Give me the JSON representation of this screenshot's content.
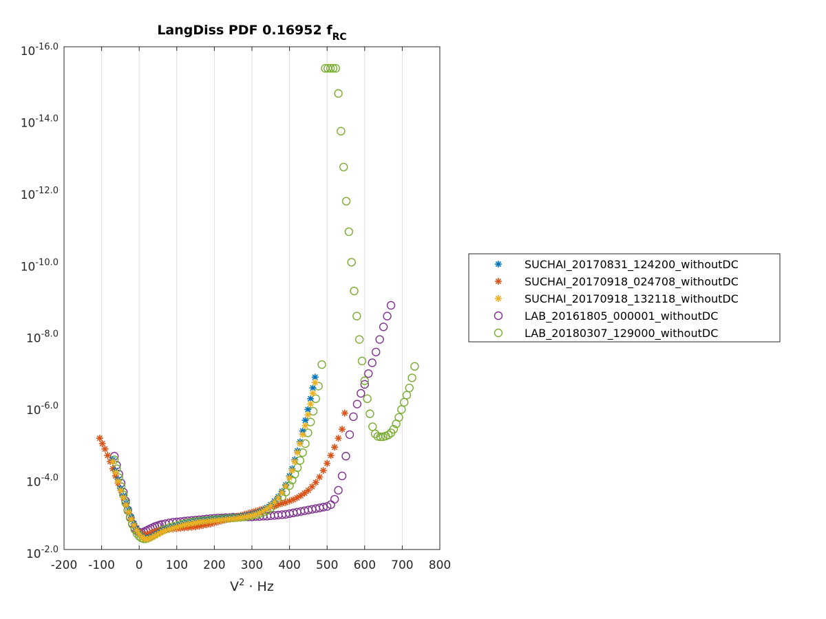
{
  "chart_data": {
    "type": "scatter",
    "title": "LangDiss PDF 0.16952 f",
    "title_subscript": "RC",
    "xlabel": "V",
    "xlabel_superscript": "2",
    "xlabel_suffix": " · Hz",
    "ylabel": "",
    "y_scale": "log",
    "xlim": [
      -200,
      800
    ],
    "ylim_exponent": [
      -16,
      -2
    ],
    "x_ticks": [
      -200,
      -100,
      0,
      100,
      200,
      300,
      400,
      500,
      600,
      700,
      800
    ],
    "y_tick_exponents": [
      -2,
      -4,
      -6,
      -8,
      -10,
      -12,
      -14,
      -16
    ],
    "y_tick_labels": [
      "10^-2.0",
      "10^-4.0",
      "10^-6.0",
      "10^-8.0",
      "10^-10.0",
      "10^-12.0",
      "10^-14.0",
      "10^-16.0"
    ],
    "grid": true,
    "legend_position": "right-outside",
    "series": [
      {
        "name": "SUCHAI_20170831_124200_withoutDC",
        "marker": "asterisk",
        "color": "#0072BD",
        "x": [
          -70,
          -63,
          -56,
          -49,
          -42,
          -35,
          -28,
          -21,
          -14,
          -7,
          0,
          7,
          14,
          21,
          28,
          35,
          42,
          49,
          56,
          63,
          70,
          80,
          90,
          100,
          110,
          120,
          130,
          140,
          150,
          160,
          170,
          180,
          190,
          200,
          210,
          220,
          230,
          240,
          250,
          260,
          270,
          280,
          290,
          300,
          310,
          320,
          330,
          340,
          350,
          360,
          370,
          380,
          390,
          400,
          407,
          414,
          421,
          428,
          435,
          442,
          449,
          456,
          462,
          468
        ],
        "y_log10": [
          -4.5,
          -4.2,
          -3.95,
          -3.7,
          -3.5,
          -3.3,
          -3.1,
          -2.9,
          -2.72,
          -2.58,
          -2.46,
          -2.38,
          -2.33,
          -2.32,
          -2.34,
          -2.37,
          -2.41,
          -2.45,
          -2.49,
          -2.53,
          -2.56,
          -2.6,
          -2.63,
          -2.66,
          -2.69,
          -2.72,
          -2.74,
          -2.76,
          -2.78,
          -2.8,
          -2.81,
          -2.82,
          -2.83,
          -2.84,
          -2.85,
          -2.86,
          -2.87,
          -2.88,
          -2.89,
          -2.9,
          -2.92,
          -2.94,
          -2.96,
          -2.98,
          -3.01,
          -3.05,
          -3.1,
          -3.17,
          -3.25,
          -3.35,
          -3.47,
          -3.62,
          -3.8,
          -4.05,
          -4.25,
          -4.5,
          -4.75,
          -5.0,
          -5.3,
          -5.6,
          -5.9,
          -6.2,
          -6.5,
          -6.8
        ]
      },
      {
        "name": "SUCHAI_20170918_024708_withoutDC",
        "marker": "asterisk",
        "color": "#D95319",
        "x": [
          -105,
          -98,
          -91,
          -84,
          -77,
          -70,
          -63,
          -56,
          -49,
          -42,
          -35,
          -28,
          -21,
          -14,
          -7,
          0,
          7,
          14,
          21,
          28,
          35,
          42,
          49,
          56,
          63,
          70,
          80,
          90,
          100,
          110,
          120,
          130,
          140,
          150,
          160,
          170,
          180,
          190,
          200,
          210,
          220,
          230,
          240,
          250,
          260,
          270,
          280,
          290,
          300,
          310,
          320,
          330,
          340,
          350,
          360,
          370,
          380,
          390,
          400,
          410,
          420,
          430,
          440,
          450,
          460,
          470,
          480,
          490,
          500,
          510,
          520,
          530,
          540,
          547
        ],
        "y_log10": [
          -5.1,
          -4.95,
          -4.8,
          -4.62,
          -4.45,
          -4.25,
          -4.05,
          -3.85,
          -3.65,
          -3.45,
          -3.25,
          -3.05,
          -2.87,
          -2.72,
          -2.6,
          -2.5,
          -2.44,
          -2.41,
          -2.42,
          -2.45,
          -2.48,
          -2.5,
          -2.52,
          -2.53,
          -2.54,
          -2.55,
          -2.56,
          -2.57,
          -2.58,
          -2.59,
          -2.6,
          -2.61,
          -2.62,
          -2.63,
          -2.65,
          -2.67,
          -2.69,
          -2.71,
          -2.74,
          -2.77,
          -2.8,
          -2.83,
          -2.86,
          -2.89,
          -2.92,
          -2.95,
          -2.98,
          -3.01,
          -3.04,
          -3.07,
          -3.1,
          -3.13,
          -3.16,
          -3.19,
          -3.22,
          -3.25,
          -3.28,
          -3.31,
          -3.35,
          -3.39,
          -3.44,
          -3.5,
          -3.57,
          -3.65,
          -3.75,
          -3.87,
          -4.02,
          -4.2,
          -4.4,
          -4.62,
          -4.85,
          -5.1,
          -5.35,
          -5.8
        ]
      },
      {
        "name": "SUCHAI_20170918_132118_withoutDC",
        "marker": "asterisk",
        "color": "#EDB120",
        "x": [
          -70,
          -63,
          -56,
          -49,
          -42,
          -35,
          -28,
          -21,
          -14,
          -7,
          0,
          7,
          14,
          21,
          28,
          35,
          42,
          49,
          56,
          63,
          70,
          80,
          90,
          100,
          110,
          120,
          130,
          140,
          150,
          160,
          170,
          180,
          190,
          200,
          210,
          220,
          230,
          240,
          250,
          260,
          270,
          280,
          290,
          300,
          310,
          320,
          330,
          340,
          350,
          360,
          370,
          380,
          390,
          400,
          407,
          414,
          421,
          428,
          435,
          442,
          449,
          456,
          462,
          468
        ],
        "y_log10": [
          -4.45,
          -4.15,
          -3.9,
          -3.65,
          -3.45,
          -3.25,
          -3.05,
          -2.85,
          -2.68,
          -2.54,
          -2.43,
          -2.35,
          -2.3,
          -2.29,
          -2.31,
          -2.34,
          -2.38,
          -2.42,
          -2.46,
          -2.5,
          -2.53,
          -2.57,
          -2.6,
          -2.63,
          -2.66,
          -2.69,
          -2.71,
          -2.73,
          -2.75,
          -2.77,
          -2.78,
          -2.79,
          -2.8,
          -2.81,
          -2.82,
          -2.83,
          -2.84,
          -2.85,
          -2.86,
          -2.87,
          -2.89,
          -2.91,
          -2.93,
          -2.95,
          -2.98,
          -3.02,
          -3.07,
          -3.14,
          -3.22,
          -3.32,
          -3.44,
          -3.59,
          -3.77,
          -4.0,
          -4.2,
          -4.45,
          -4.7,
          -4.95,
          -5.2,
          -5.45,
          -5.75,
          -6.05,
          -6.35,
          -6.65
        ]
      },
      {
        "name": "LAB_20161805_000001_withoutDC",
        "marker": "circle",
        "color": "#7E2F8E",
        "x": [
          -66,
          -60,
          -54,
          -48,
          -42,
          -36,
          -30,
          -24,
          -18,
          -12,
          -6,
          0,
          6,
          12,
          18,
          24,
          30,
          36,
          42,
          48,
          54,
          60,
          70,
          80,
          90,
          100,
          110,
          120,
          130,
          140,
          150,
          160,
          170,
          180,
          190,
          200,
          210,
          220,
          230,
          240,
          250,
          260,
          270,
          280,
          290,
          300,
          310,
          320,
          330,
          340,
          350,
          360,
          370,
          380,
          390,
          400,
          410,
          420,
          430,
          440,
          450,
          460,
          470,
          480,
          490,
          500,
          510,
          520,
          530,
          540,
          550,
          560,
          570,
          580,
          590,
          600,
          610,
          620,
          630,
          640,
          650,
          660,
          670
        ],
        "y_log10": [
          -4.6,
          -4.35,
          -4.1,
          -3.85,
          -3.6,
          -3.35,
          -3.1,
          -2.9,
          -2.72,
          -2.6,
          -2.52,
          -2.48,
          -2.47,
          -2.49,
          -2.52,
          -2.55,
          -2.58,
          -2.61,
          -2.64,
          -2.66,
          -2.68,
          -2.7,
          -2.72,
          -2.74,
          -2.76,
          -2.77,
          -2.78,
          -2.79,
          -2.8,
          -2.81,
          -2.82,
          -2.83,
          -2.84,
          -2.85,
          -2.86,
          -2.87,
          -2.88,
          -2.88,
          -2.89,
          -2.89,
          -2.9,
          -2.9,
          -2.9,
          -2.91,
          -2.91,
          -2.91,
          -2.92,
          -2.92,
          -2.93,
          -2.93,
          -2.94,
          -2.95,
          -2.96,
          -2.97,
          -2.98,
          -3.0,
          -3.02,
          -3.04,
          -3.06,
          -3.08,
          -3.1,
          -3.12,
          -3.14,
          -3.16,
          -3.18,
          -3.2,
          -3.25,
          -3.4,
          -3.65,
          -4.05,
          -4.6,
          -5.2,
          -5.7,
          -6.05,
          -6.35,
          -6.6,
          -6.9,
          -7.2,
          -7.5,
          -7.85,
          -8.2,
          -8.5,
          -8.8
        ]
      },
      {
        "name": "LAB_20180307_129000_withoutDC",
        "marker": "circle",
        "color": "#77AC30",
        "x": [
          -66,
          -60,
          -54,
          -48,
          -42,
          -36,
          -30,
          -24,
          -18,
          -12,
          -6,
          0,
          6,
          12,
          18,
          24,
          30,
          36,
          42,
          48,
          54,
          60,
          70,
          80,
          90,
          100,
          110,
          120,
          130,
          140,
          150,
          160,
          170,
          180,
          190,
          200,
          210,
          220,
          230,
          240,
          250,
          260,
          270,
          280,
          290,
          300,
          310,
          320,
          330,
          340,
          350,
          360,
          370,
          380,
          390,
          400,
          407,
          414,
          421,
          428,
          435,
          442,
          449,
          456,
          463,
          470,
          477,
          486,
          495,
          502,
          509,
          516,
          523,
          530,
          537,
          544,
          551,
          558,
          565,
          572,
          579,
          586,
          593,
          600,
          607,
          614,
          621,
          628,
          635,
          642,
          649,
          656,
          663,
          670,
          677,
          684,
          691,
          698,
          705,
          712,
          719,
          726,
          733
        ],
        "y_log10": [
          -4.5,
          -4.25,
          -4.0,
          -3.75,
          -3.52,
          -3.3,
          -3.08,
          -2.88,
          -2.7,
          -2.56,
          -2.45,
          -2.37,
          -2.32,
          -2.3,
          -2.3,
          -2.32,
          -2.35,
          -2.39,
          -2.43,
          -2.47,
          -2.5,
          -2.53,
          -2.57,
          -2.61,
          -2.64,
          -2.67,
          -2.7,
          -2.72,
          -2.74,
          -2.76,
          -2.78,
          -2.79,
          -2.8,
          -2.81,
          -2.82,
          -2.83,
          -2.84,
          -2.85,
          -2.86,
          -2.87,
          -2.88,
          -2.89,
          -2.9,
          -2.91,
          -2.93,
          -2.95,
          -2.97,
          -3.0,
          -3.04,
          -3.09,
          -3.16,
          -3.24,
          -3.34,
          -3.46,
          -3.6,
          -3.78,
          -3.93,
          -4.1,
          -4.28,
          -4.48,
          -4.7,
          -4.95,
          -5.25,
          -5.55,
          -5.85,
          -6.2,
          -6.55,
          -7.15,
          -15.4,
          -15.4,
          -15.4,
          -15.4,
          -15.4,
          -14.7,
          -13.65,
          -12.65,
          -11.7,
          -10.85,
          -10.0,
          -9.2,
          -8.5,
          -7.85,
          -7.25,
          -6.7,
          -6.2,
          -5.78,
          -5.42,
          -5.22,
          -5.15,
          -5.14,
          -5.14,
          -5.16,
          -5.19,
          -5.25,
          -5.35,
          -5.5,
          -5.68,
          -5.9,
          -6.1,
          -6.3,
          -6.5,
          -6.78,
          -7.1
        ]
      }
    ]
  }
}
